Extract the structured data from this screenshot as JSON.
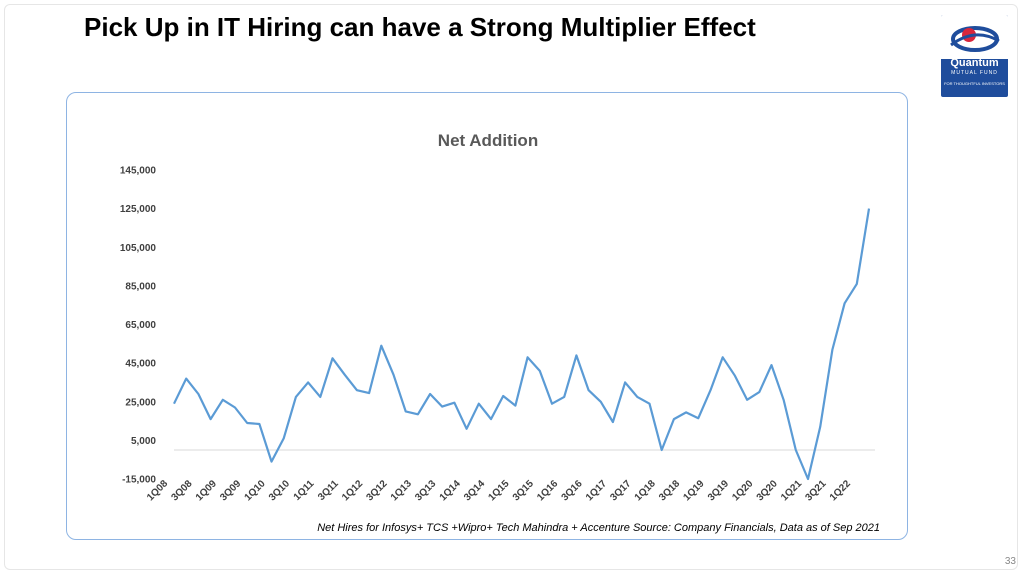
{
  "slide": {
    "title": "Pick Up in IT Hiring can have a Strong Multiplier Effect",
    "source": "Net Hires for Infosys+ TCS +Wipro+ Tech Mahindra + Accenture Source: Company Financials, Data as of Sep 2021",
    "page_number": "33"
  },
  "logo": {
    "name": "Quantum",
    "subtitle": "MUTUAL FUND",
    "tagline": "FOR THOUGHTFUL INVESTORS",
    "colors": {
      "background": "#1f4d9c",
      "accent": "#d7263d"
    }
  },
  "colors": {
    "line": "#5b9bd5",
    "frame_border": "#8eb4e3"
  },
  "chart_data": {
    "type": "line",
    "title": "Net  Addition",
    "xlabel": "",
    "ylabel": "",
    "ylim": [
      -15000,
      145000
    ],
    "yticks": [
      -15000,
      5000,
      25000,
      45000,
      65000,
      85000,
      105000,
      125000,
      145000
    ],
    "ytick_labels": [
      "-15,000",
      "5,000",
      "25,000",
      "45,000",
      "65,000",
      "85,000",
      "105,000",
      "125,000",
      "145,000"
    ],
    "grid": false,
    "zero_line": true,
    "xtick_labels": [
      "1Q08",
      "3Q08",
      "1Q09",
      "3Q09",
      "1Q10",
      "3Q10",
      "1Q11",
      "3Q11",
      "1Q12",
      "3Q12",
      "1Q13",
      "3Q13",
      "1Q14",
      "3Q14",
      "1Q15",
      "3Q15",
      "1Q16",
      "3Q16",
      "1Q17",
      "3Q17",
      "1Q18",
      "3Q18",
      "1Q19",
      "3Q19",
      "1Q20",
      "3Q20",
      "1Q21",
      "3Q21",
      "1Q22"
    ],
    "values": [
      24000,
      37000,
      29000,
      16000,
      26000,
      22000,
      14000,
      13500,
      -6000,
      6000,
      27500,
      35000,
      27500,
      47500,
      39000,
      31000,
      29500,
      54000,
      39000,
      20000,
      18500,
      29000,
      22500,
      24500,
      11000,
      24000,
      16000,
      28000,
      23000,
      48000,
      41000,
      24000,
      27500,
      49000,
      31000,
      25000,
      14500,
      35000,
      27500,
      24000,
      0,
      16000,
      19500,
      16500,
      31000,
      48000,
      38500,
      26000,
      30000,
      44000,
      26000,
      0,
      -15000,
      12000,
      52000,
      76000,
      86000,
      125000
    ]
  }
}
